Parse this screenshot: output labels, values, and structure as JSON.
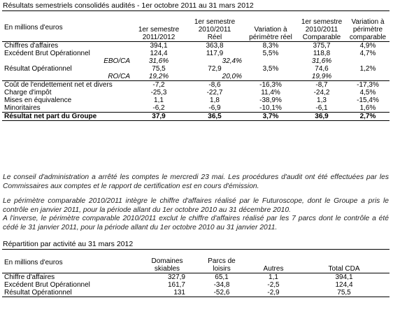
{
  "title1": "Résultats semestriels consolidés audités - 1er octobre 2011 au 31 mars 2012",
  "table1": {
    "unit_label": "En millions d'euros",
    "headers": [
      [
        "1er semestre",
        "2011/2012"
      ],
      [
        "1er semestre",
        "2010/2011",
        "Réel"
      ],
      [
        "Variation à",
        "périmètre réel"
      ],
      [
        "1er semestre",
        "2010/2011",
        "Comparable"
      ],
      [
        "Variation à",
        "périmètre",
        "comparable"
      ]
    ],
    "rows": [
      {
        "label": "Chiffres d'affaires",
        "v": [
          "394,1",
          "363,8",
          "8,3%",
          "375,7",
          "4,9%"
        ]
      },
      {
        "label": "Excédent Brut Opérationnel",
        "v": [
          "124,4",
          "117,9",
          "5,5%",
          "118,8",
          "4,7%"
        ]
      },
      {
        "label": "EBO/CA",
        "v": [
          "31,6%",
          "32,4%",
          "",
          "31,6%",
          ""
        ]
      },
      {
        "label": "Résultat Opérationnel",
        "v": [
          "75,5",
          "72,9",
          "3,5%",
          "74,6",
          "1,2%"
        ]
      },
      {
        "label": "RO/CA",
        "v": [
          "19,2%",
          "20,0%",
          "",
          "19,9%",
          ""
        ]
      },
      {
        "label": "Coût de l'endettement net et divers",
        "v": [
          "-7,2",
          "-8,6",
          "-16,3%",
          "-8,7",
          "-17,3%"
        ]
      },
      {
        "label": "Charge d'impôt",
        "v": [
          "-25,3",
          "-22,7",
          "11,4%",
          "-24,2",
          "4,5%"
        ]
      },
      {
        "label": "Mises en équivalence",
        "v": [
          "1,1",
          "1,8",
          "-38,9%",
          "1,3",
          "-15,4%"
        ]
      },
      {
        "label": "Minoritaires",
        "v": [
          "-6,2",
          "-6,9",
          "-10,1%",
          "-6,1",
          "1,6%"
        ]
      },
      {
        "label": "Résultat net part du Groupe",
        "v": [
          "37,9",
          "36,5",
          "3,7%",
          "36,9",
          "2,7%"
        ]
      }
    ]
  },
  "paragraphs": {
    "p1": "Le conseil d'administration a arrêté les comptes le mercredi 23 mai. Les procédures d'audit ont été effectuées par les Commissaires aux comptes et le rapport de certification est en cours d'émission.",
    "p2a": "Le périmètre comparable 2010/2011 intègre le chiffre d'affaires réalisé par le Futuroscope, dont le Groupe a pris le contrôle en janvier 2011, pour la période allant du 1er octobre 2010 au 31 décembre 2010.",
    "p2b": "A l'inverse, le périmètre comparable 2010/2011 exclut le chiffre d'affaires réalisé par les 7 parcs dont le contrôle a été cédé le 31 janvier 2011, pour la période allant du 1er octobre 2010 au 31 janvier 2011."
  },
  "title2": "Répartition par activité au 31 mars 2012",
  "table2": {
    "unit_label": "En millions d'euros",
    "headers": [
      [
        "Domaines",
        "skiables"
      ],
      [
        "Parcs de",
        "loisirs"
      ],
      [
        "Autres"
      ],
      [
        "Total CDA"
      ]
    ],
    "rows": [
      {
        "label": "Chiffre d'affaires",
        "v": [
          "327,9",
          "65,1",
          "1,1",
          "394,1"
        ]
      },
      {
        "label": "Excédent Brut Opérationnel",
        "v": [
          "161,7",
          "-34,8",
          "-2,5",
          "124,4"
        ]
      },
      {
        "label": "Résultat Opérationnel",
        "v": [
          "131",
          "-52,6",
          "-2,9",
          "75,5"
        ]
      }
    ]
  }
}
